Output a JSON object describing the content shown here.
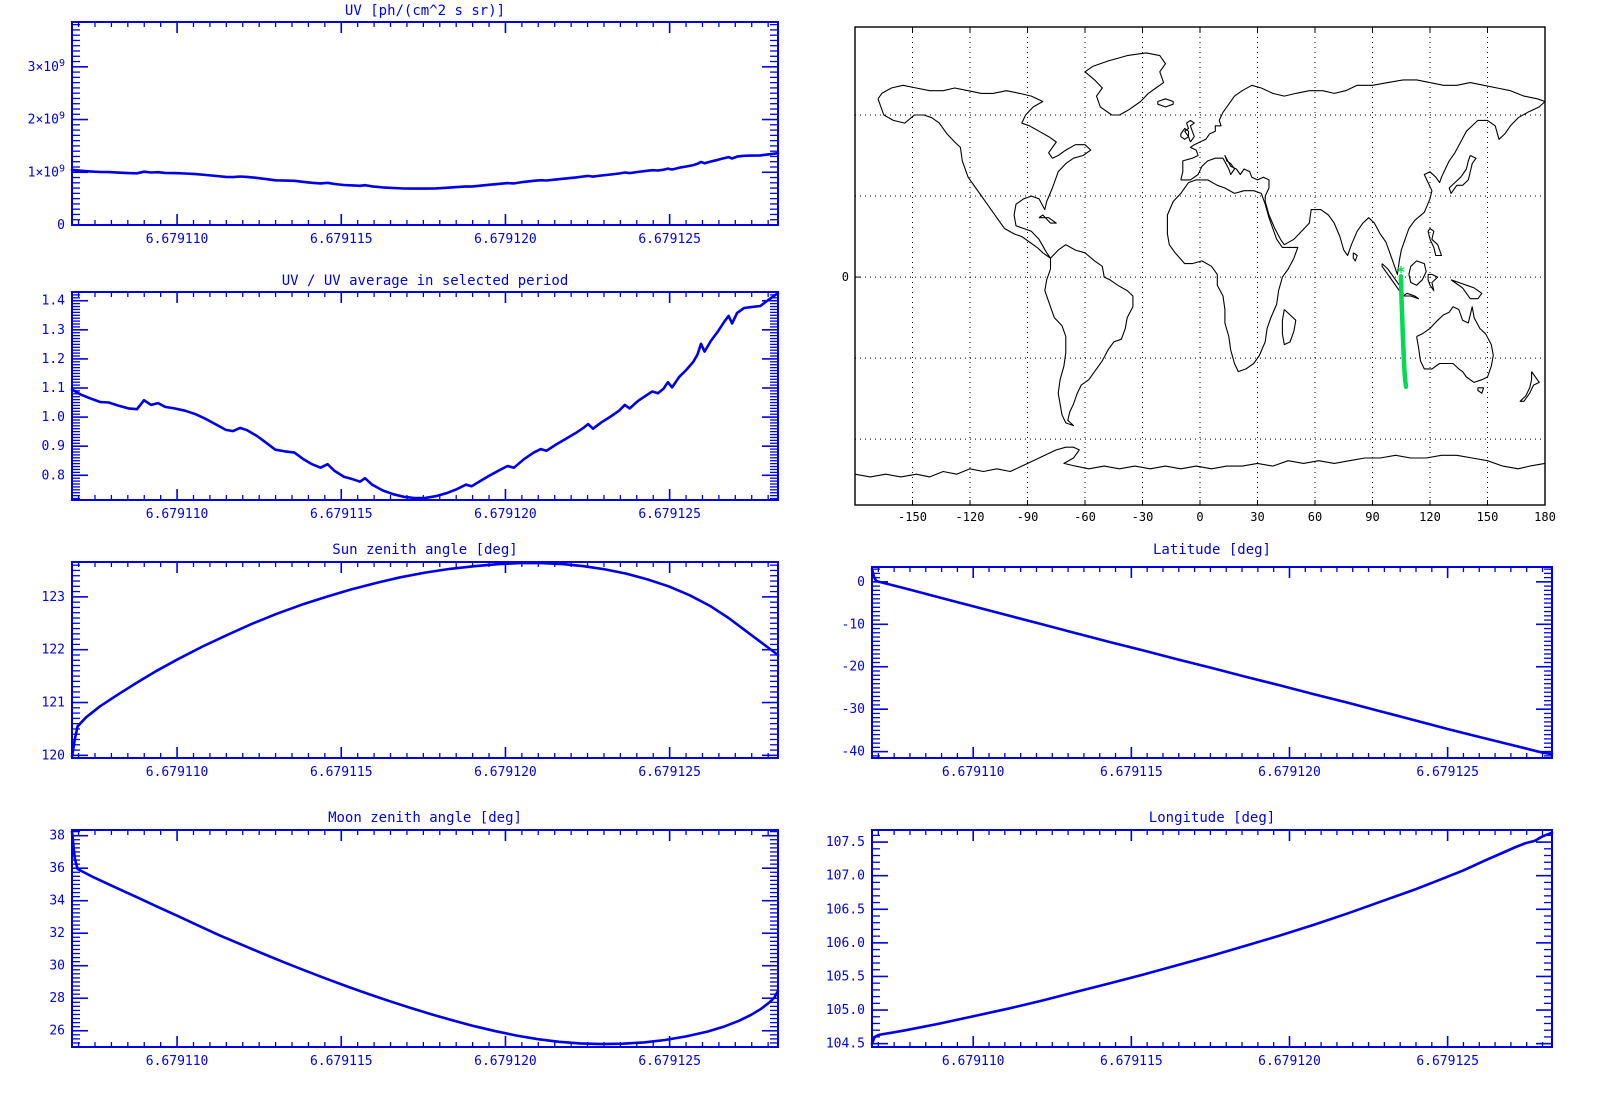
{
  "page": {
    "background": "#FFFFFF"
  },
  "colors": {
    "line_blue": "#0000E8",
    "map_black": "#000000",
    "track_green": "#00DC50"
  },
  "chart_data": [
    {
      "id": "uv",
      "type": "line",
      "title": "UV [ph/(cm^2 s sr)]",
      "xlabel": "",
      "ylabel": "",
      "y_unit": "10^9 ph/(cm^2 s sr)",
      "x_domain": [
        6.6791068,
        6.6791283
      ],
      "x_minor": 5e-07,
      "x_ticks": [
        {
          "v": 6.67911,
          "l": "6.679110"
        },
        {
          "v": 6.679115,
          "l": "6.679115"
        },
        {
          "v": 6.67912,
          "l": "6.679120"
        },
        {
          "v": 6.679125,
          "l": "6.679125"
        }
      ],
      "y_domain": [
        0,
        3.85
      ],
      "y_minor": 0.1,
      "y_ticks": [
        {
          "v": 0,
          "l": "0"
        },
        {
          "v": 1,
          "l": "1×10^9"
        },
        {
          "v": 2,
          "l": "2×10^9"
        },
        {
          "v": 3,
          "l": "3×10^9"
        }
      ],
      "series": {
        "t": [
          0.0,
          0.012,
          0.025,
          0.04,
          0.052,
          0.065,
          0.08,
          0.092,
          0.102,
          0.112,
          0.122,
          0.132,
          0.145,
          0.16,
          0.175,
          0.19,
          0.205,
          0.218,
          0.228,
          0.238,
          0.248,
          0.262,
          0.275,
          0.288,
          0.302,
          0.315,
          0.328,
          0.34,
          0.352,
          0.362,
          0.372,
          0.385,
          0.398,
          0.408,
          0.415,
          0.425,
          0.44,
          0.455,
          0.47,
          0.485,
          0.5,
          0.515,
          0.53,
          0.545,
          0.558,
          0.566,
          0.578,
          0.592,
          0.606,
          0.617,
          0.626,
          0.64,
          0.654,
          0.664,
          0.672,
          0.686,
          0.7,
          0.714,
          0.724,
          0.731,
          0.738,
          0.75,
          0.763,
          0.775,
          0.783,
          0.79,
          0.802,
          0.813,
          0.822,
          0.83,
          0.838,
          0.844,
          0.85,
          0.86,
          0.87,
          0.88,
          0.886,
          0.891,
          0.896,
          0.905,
          0.915,
          0.924,
          0.93,
          0.935,
          0.942,
          0.952,
          0.962,
          0.975,
          0.986,
          1.0
        ],
        "v": [
          1.046,
          1.029,
          1.017,
          1.005,
          1.003,
          0.993,
          0.984,
          0.981,
          1.01,
          0.995,
          1.001,
          0.988,
          0.984,
          0.976,
          0.965,
          0.948,
          0.929,
          0.913,
          0.909,
          0.92,
          0.912,
          0.893,
          0.871,
          0.848,
          0.842,
          0.838,
          0.817,
          0.8,
          0.789,
          0.8,
          0.778,
          0.759,
          0.751,
          0.743,
          0.754,
          0.733,
          0.714,
          0.702,
          0.693,
          0.69,
          0.69,
          0.695,
          0.705,
          0.718,
          0.733,
          0.728,
          0.745,
          0.764,
          0.781,
          0.795,
          0.789,
          0.817,
          0.838,
          0.85,
          0.844,
          0.865,
          0.884,
          0.903,
          0.919,
          0.932,
          0.917,
          0.938,
          0.957,
          0.976,
          0.995,
          0.984,
          1.008,
          1.026,
          1.039,
          1.033,
          1.049,
          1.07,
          1.052,
          1.087,
          1.11,
          1.136,
          1.16,
          1.196,
          1.17,
          1.205,
          1.237,
          1.268,
          1.287,
          1.262,
          1.297,
          1.313,
          1.316,
          1.32,
          1.339,
          1.362
        ]
      }
    },
    {
      "id": "ratio",
      "type": "line",
      "title": "UV / UV average in selected period",
      "x_domain": [
        6.6791068,
        6.6791283
      ],
      "x_minor": 5e-07,
      "x_ticks": [
        {
          "v": 6.67911,
          "l": "6.679110"
        },
        {
          "v": 6.679115,
          "l": "6.679115"
        },
        {
          "v": 6.67912,
          "l": "6.679120"
        },
        {
          "v": 6.679125,
          "l": "6.679125"
        }
      ],
      "y_domain": [
        0.715,
        1.43
      ],
      "y_minor": 0.01,
      "y_ticks": [
        {
          "v": 0.8,
          "l": "0.8"
        },
        {
          "v": 0.9,
          "l": "0.9"
        },
        {
          "v": 1.0,
          "l": "1.0"
        },
        {
          "v": 1.1,
          "l": "1.1"
        },
        {
          "v": 1.2,
          "l": "1.2"
        },
        {
          "v": 1.3,
          "l": "1.3"
        },
        {
          "v": 1.4,
          "l": "1.4"
        }
      ],
      "series": {
        "t": [
          0.0,
          0.012,
          0.025,
          0.04,
          0.052,
          0.065,
          0.08,
          0.092,
          0.102,
          0.112,
          0.122,
          0.132,
          0.145,
          0.16,
          0.175,
          0.19,
          0.205,
          0.218,
          0.228,
          0.238,
          0.248,
          0.262,
          0.275,
          0.288,
          0.302,
          0.315,
          0.328,
          0.34,
          0.352,
          0.362,
          0.372,
          0.385,
          0.398,
          0.408,
          0.415,
          0.425,
          0.44,
          0.455,
          0.47,
          0.485,
          0.5,
          0.515,
          0.53,
          0.545,
          0.558,
          0.566,
          0.578,
          0.592,
          0.606,
          0.617,
          0.626,
          0.64,
          0.654,
          0.664,
          0.672,
          0.686,
          0.7,
          0.714,
          0.724,
          0.731,
          0.738,
          0.75,
          0.763,
          0.775,
          0.783,
          0.79,
          0.802,
          0.813,
          0.822,
          0.83,
          0.838,
          0.844,
          0.85,
          0.86,
          0.87,
          0.88,
          0.886,
          0.891,
          0.896,
          0.905,
          0.915,
          0.924,
          0.93,
          0.935,
          0.942,
          0.952,
          0.962,
          0.975,
          0.986,
          1.0
        ],
        "v": [
          1.095,
          1.078,
          1.065,
          1.052,
          1.05,
          1.04,
          1.03,
          1.027,
          1.058,
          1.042,
          1.048,
          1.035,
          1.03,
          1.022,
          1.01,
          0.993,
          0.973,
          0.956,
          0.952,
          0.963,
          0.955,
          0.935,
          0.912,
          0.888,
          0.882,
          0.878,
          0.855,
          0.838,
          0.826,
          0.838,
          0.815,
          0.795,
          0.786,
          0.778,
          0.79,
          0.768,
          0.748,
          0.735,
          0.726,
          0.722,
          0.722,
          0.728,
          0.738,
          0.752,
          0.768,
          0.762,
          0.78,
          0.8,
          0.818,
          0.832,
          0.826,
          0.855,
          0.878,
          0.89,
          0.884,
          0.906,
          0.926,
          0.946,
          0.962,
          0.976,
          0.96,
          0.982,
          1.002,
          1.022,
          1.042,
          1.03,
          1.056,
          1.074,
          1.088,
          1.082,
          1.098,
          1.12,
          1.102,
          1.138,
          1.162,
          1.19,
          1.215,
          1.252,
          1.225,
          1.262,
          1.295,
          1.328,
          1.348,
          1.322,
          1.358,
          1.375,
          1.378,
          1.382,
          1.402,
          1.426
        ]
      }
    },
    {
      "id": "sza",
      "type": "line",
      "title": "Sun zenith angle [deg]",
      "x_domain": [
        6.6791068,
        6.6791283
      ],
      "x_minor": 5e-07,
      "x_ticks": [
        {
          "v": 6.67911,
          "l": "6.679110"
        },
        {
          "v": 6.679115,
          "l": "6.679115"
        },
        {
          "v": 6.67912,
          "l": "6.679120"
        },
        {
          "v": 6.679125,
          "l": "6.679125"
        }
      ],
      "y_domain": [
        119.95,
        123.66
      ],
      "y_minor": 0.1,
      "y_ticks": [
        {
          "v": 120,
          "l": "120"
        },
        {
          "v": 121,
          "l": "121"
        },
        {
          "v": 122,
          "l": "122"
        },
        {
          "v": 123,
          "l": "123"
        }
      ],
      "series": {
        "t": [
          0.0,
          0.004,
          0.008,
          0.02,
          0.04,
          0.065,
          0.09,
          0.12,
          0.15,
          0.185,
          0.22,
          0.255,
          0.29,
          0.325,
          0.36,
          0.395,
          0.43,
          0.465,
          0.5,
          0.535,
          0.57,
          0.605,
          0.635,
          0.665,
          0.695,
          0.725,
          0.755,
          0.785,
          0.815,
          0.845,
          0.875,
          0.905,
          0.93,
          0.95,
          0.968,
          0.984,
          1.0
        ],
        "v": [
          119.97,
          120.3,
          120.55,
          120.72,
          120.93,
          121.15,
          121.36,
          121.6,
          121.82,
          122.06,
          122.28,
          122.49,
          122.68,
          122.85,
          123.0,
          123.14,
          123.26,
          123.37,
          123.46,
          123.53,
          123.58,
          123.62,
          123.64,
          123.64,
          123.62,
          123.58,
          123.52,
          123.44,
          123.33,
          123.2,
          123.03,
          122.82,
          122.6,
          122.4,
          122.22,
          122.06,
          121.9
        ]
      }
    },
    {
      "id": "mza",
      "type": "line",
      "title": "Moon zenith angle [deg]",
      "x_domain": [
        6.6791068,
        6.6791283
      ],
      "x_minor": 5e-07,
      "x_ticks": [
        {
          "v": 6.67911,
          "l": "6.679110"
        },
        {
          "v": 6.679115,
          "l": "6.679115"
        },
        {
          "v": 6.67912,
          "l": "6.679120"
        },
        {
          "v": 6.679125,
          "l": "6.679125"
        }
      ],
      "y_domain": [
        25.0,
        38.35
      ],
      "y_minor": 0.25,
      "y_ticks": [
        {
          "v": 26,
          "l": "26"
        },
        {
          "v": 28,
          "l": "28"
        },
        {
          "v": 30,
          "l": "30"
        },
        {
          "v": 32,
          "l": "32"
        },
        {
          "v": 34,
          "l": "34"
        },
        {
          "v": 36,
          "l": "36"
        },
        {
          "v": 38,
          "l": "38"
        }
      ],
      "series": {
        "t": [
          0.0,
          0.004,
          0.008,
          0.03,
          0.06,
          0.09,
          0.12,
          0.15,
          0.18,
          0.21,
          0.24,
          0.27,
          0.3,
          0.33,
          0.36,
          0.39,
          0.42,
          0.45,
          0.48,
          0.51,
          0.54,
          0.57,
          0.6,
          0.63,
          0.66,
          0.69,
          0.72,
          0.75,
          0.78,
          0.81,
          0.84,
          0.87,
          0.9,
          0.925,
          0.945,
          0.962,
          0.976,
          0.988,
          0.995,
          1.0
        ],
        "v": [
          38.25,
          36.6,
          35.95,
          35.45,
          34.85,
          34.25,
          33.65,
          33.05,
          32.45,
          31.85,
          31.3,
          30.75,
          30.22,
          29.7,
          29.2,
          28.72,
          28.26,
          27.82,
          27.4,
          27.0,
          26.63,
          26.28,
          25.97,
          25.7,
          25.48,
          25.32,
          25.22,
          25.18,
          25.2,
          25.28,
          25.43,
          25.65,
          25.95,
          26.28,
          26.62,
          26.98,
          27.35,
          27.75,
          28.05,
          28.45
        ]
      }
    },
    {
      "id": "lat",
      "type": "line",
      "title": "Latitude [deg]",
      "x_domain": [
        6.6791068,
        6.6791283
      ],
      "x_minor": 5e-07,
      "x_ticks": [
        {
          "v": 6.67911,
          "l": "6.679110"
        },
        {
          "v": 6.679115,
          "l": "6.679115"
        },
        {
          "v": 6.67912,
          "l": "6.679120"
        },
        {
          "v": 6.679125,
          "l": "6.679125"
        }
      ],
      "y_domain": [
        -41.5,
        3.5
      ],
      "y_minor": 1,
      "y_ticks": [
        {
          "v": 0,
          "l": "0"
        },
        {
          "v": -10,
          "l": "-10"
        },
        {
          "v": -20,
          "l": "-20"
        },
        {
          "v": -30,
          "l": "-30"
        },
        {
          "v": -40,
          "l": "-40"
        }
      ],
      "series": {
        "t": [
          0.0,
          0.003,
          0.006,
          0.05,
          0.1,
          0.15,
          0.2,
          0.25,
          0.3,
          0.35,
          0.4,
          0.45,
          0.5,
          0.55,
          0.6,
          0.65,
          0.7,
          0.75,
          0.8,
          0.85,
          0.9,
          0.95,
          0.985,
          1.0
        ],
        "v": [
          3.0,
          1.2,
          0.2,
          -1.6,
          -3.7,
          -5.8,
          -7.9,
          -10.0,
          -12.1,
          -14.2,
          -16.2,
          -18.3,
          -20.3,
          -22.4,
          -24.4,
          -26.5,
          -28.5,
          -30.6,
          -32.7,
          -34.8,
          -36.8,
          -38.8,
          -40.2,
          -40.6
        ]
      }
    },
    {
      "id": "lon",
      "type": "line",
      "title": "Longitude [deg]",
      "x_domain": [
        6.6791068,
        6.6791283
      ],
      "x_minor": 5e-07,
      "x_ticks": [
        {
          "v": 6.67911,
          "l": "6.679110"
        },
        {
          "v": 6.679115,
          "l": "6.679115"
        },
        {
          "v": 6.67912,
          "l": "6.679120"
        },
        {
          "v": 6.679125,
          "l": "6.679125"
        }
      ],
      "y_domain": [
        104.45,
        107.68
      ],
      "y_minor": 0.1,
      "y_ticks": [
        {
          "v": 104.5,
          "l": "104.5"
        },
        {
          "v": 105.0,
          "l": "105.0"
        },
        {
          "v": 105.5,
          "l": "105.5"
        },
        {
          "v": 106.0,
          "l": "106.0"
        },
        {
          "v": 106.5,
          "l": "106.5"
        },
        {
          "v": 107.0,
          "l": "107.0"
        },
        {
          "v": 107.5,
          "l": "107.5"
        }
      ],
      "series": {
        "t": [
          0.0,
          0.004,
          0.01,
          0.05,
          0.1,
          0.15,
          0.2,
          0.25,
          0.3,
          0.35,
          0.4,
          0.45,
          0.5,
          0.55,
          0.6,
          0.65,
          0.7,
          0.75,
          0.8,
          0.84,
          0.87,
          0.9,
          0.925,
          0.945,
          0.96,
          0.975,
          0.985,
          1.0
        ],
        "v": [
          104.5,
          104.6,
          104.63,
          104.7,
          104.8,
          104.91,
          105.02,
          105.14,
          105.27,
          105.4,
          105.53,
          105.67,
          105.81,
          105.96,
          106.11,
          106.27,
          106.44,
          106.62,
          106.8,
          106.96,
          107.08,
          107.22,
          107.33,
          107.42,
          107.48,
          107.52,
          107.58,
          107.64
        ]
      }
    },
    {
      "id": "map",
      "type": "map",
      "title": "",
      "lon_range": [
        -180,
        180
      ],
      "lat_range": [
        -84.4,
        92.6
      ],
      "grid_lons": [
        -150,
        -120,
        -90,
        -60,
        -30,
        0,
        30,
        60,
        90,
        120,
        150
      ],
      "grid_lats": [
        -60,
        -30,
        0,
        30,
        60
      ],
      "x_ticks": [
        {
          "v": -150,
          "l": "-150"
        },
        {
          "v": -120,
          "l": "-120"
        },
        {
          "v": -90,
          "l": "-90"
        },
        {
          "v": -60,
          "l": "-60"
        },
        {
          "v": -30,
          "l": "-30"
        },
        {
          "v": 0,
          "l": "0"
        },
        {
          "v": 30,
          "l": "30"
        },
        {
          "v": 60,
          "l": "60"
        },
        {
          "v": 90,
          "l": "90"
        },
        {
          "v": 120,
          "l": "120"
        },
        {
          "v": 150,
          "l": "150"
        },
        {
          "v": 180,
          "l": "180"
        }
      ],
      "y_ticks": [
        {
          "v": 0,
          "l": "0"
        }
      ],
      "track": {
        "points": [
          [
            104.8,
            0.3
          ],
          [
            104.95,
            -3
          ],
          [
            105.1,
            -6
          ],
          [
            105.2,
            -9
          ],
          [
            105.35,
            -12
          ],
          [
            105.5,
            -15
          ],
          [
            105.65,
            -18
          ],
          [
            105.8,
            -21
          ],
          [
            105.95,
            -24
          ],
          [
            106.15,
            -27
          ],
          [
            106.35,
            -30
          ],
          [
            106.55,
            -33
          ],
          [
            106.8,
            -36
          ],
          [
            107.1,
            -38.5
          ],
          [
            107.5,
            -40.6
          ]
        ],
        "marker": [
          104.85,
          1.8
        ],
        "marker_glyph": "*"
      }
    }
  ]
}
